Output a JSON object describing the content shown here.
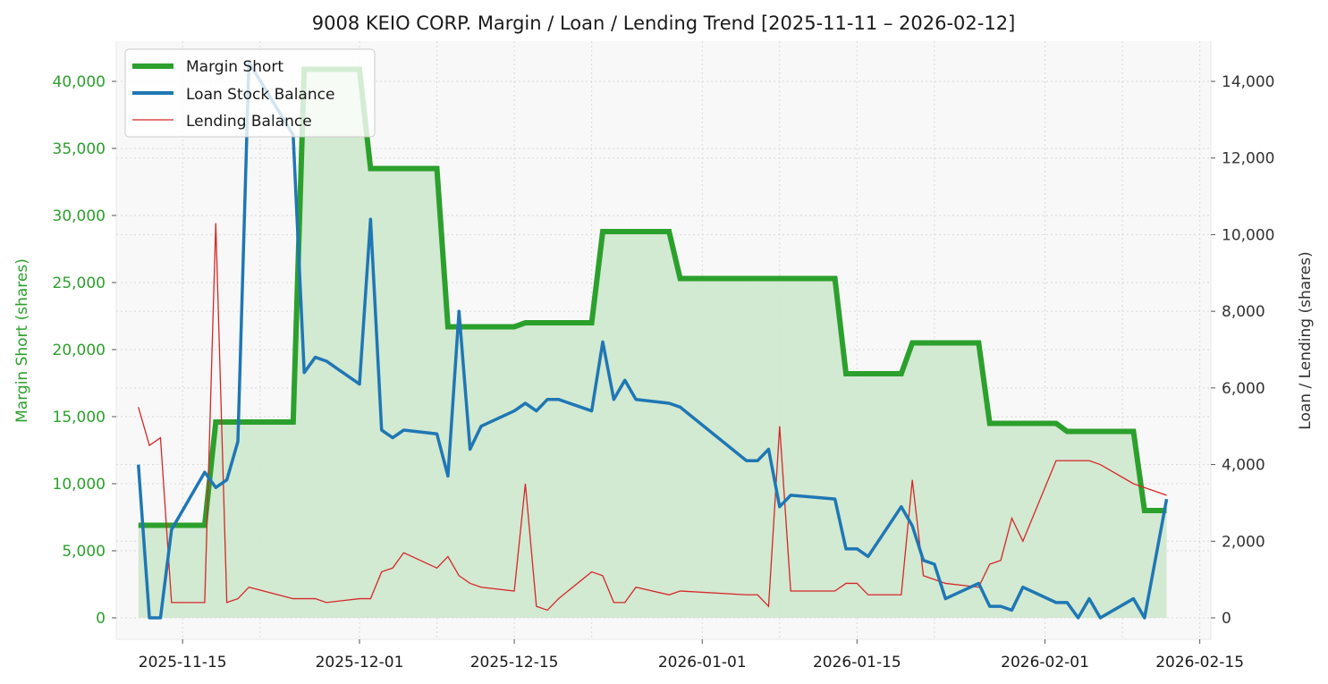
{
  "chart_data": {
    "type": "line",
    "title": "9008 KEIO CORP. Margin / Loan / Lending Trend [2025-11-11 – 2026-02-12]",
    "ylabel_left": "Margin Short (shares)",
    "ylabel_right": "Loan / Lending (shares)",
    "xlim": [
      "2025-11-09",
      "2026-02-16"
    ],
    "ylim_left": [
      -1600,
      43000
    ],
    "ylim_right": [
      -560,
      15050
    ],
    "x_ticks": [
      "2025-11-15",
      "2025-12-01",
      "2025-12-15",
      "2026-01-01",
      "2026-01-15",
      "2026-02-01",
      "2026-02-15"
    ],
    "y_ticks_left": [
      0,
      5000,
      10000,
      15000,
      20000,
      25000,
      30000,
      35000,
      40000
    ],
    "y_tick_labels_left": [
      "0",
      "5,000",
      "10,000",
      "15,000",
      "20,000",
      "25,000",
      "30,000",
      "35,000",
      "40,000"
    ],
    "y_ticks_right": [
      0,
      2000,
      4000,
      6000,
      8000,
      10000,
      12000,
      14000
    ],
    "y_tick_labels_right": [
      "0",
      "2,000",
      "4,000",
      "6,000",
      "8,000",
      "10,000",
      "12,000",
      "14,000"
    ],
    "grid": true,
    "legend_position": "top-left",
    "colors": {
      "margin": "#2ca02c",
      "loan": "#1f77b4",
      "lending": "#d62728",
      "fill": "#d0e8d0",
      "panel": "#f8f8f8"
    },
    "series": [
      {
        "name": "Margin Short",
        "axis": "left",
        "style": "step-thick",
        "points": [
          [
            "2025-11-11",
            6900
          ],
          [
            "2025-11-14",
            6900
          ],
          [
            "2025-11-17",
            6900
          ],
          [
            "2025-11-18",
            14600
          ],
          [
            "2025-11-25",
            14600
          ],
          [
            "2025-11-26",
            40900
          ],
          [
            "2025-12-01",
            40900
          ],
          [
            "2025-12-02",
            33500
          ],
          [
            "2025-12-08",
            33500
          ],
          [
            "2025-12-09",
            21700
          ],
          [
            "2025-12-15",
            21700
          ],
          [
            "2025-12-16",
            22000
          ],
          [
            "2025-12-22",
            22000
          ],
          [
            "2025-12-23",
            28800
          ],
          [
            "2025-12-29",
            28800
          ],
          [
            "2025-12-30",
            25300
          ],
          [
            "2026-01-13",
            25300
          ],
          [
            "2026-01-14",
            18200
          ],
          [
            "2026-01-19",
            18200
          ],
          [
            "2026-01-20",
            20500
          ],
          [
            "2026-01-26",
            20500
          ],
          [
            "2026-01-27",
            14500
          ],
          [
            "2026-02-02",
            14500
          ],
          [
            "2026-02-03",
            13900
          ],
          [
            "2026-02-09",
            13900
          ],
          [
            "2026-02-10",
            8000
          ],
          [
            "2026-02-12",
            8000
          ]
        ]
      },
      {
        "name": "Loan Stock Balance",
        "axis": "right",
        "style": "line-medium",
        "points": [
          [
            "2025-11-11",
            4000
          ],
          [
            "2025-11-12",
            0
          ],
          [
            "2025-11-13",
            0
          ],
          [
            "2025-11-14",
            2300
          ],
          [
            "2025-11-17",
            3800
          ],
          [
            "2025-11-18",
            3400
          ],
          [
            "2025-11-19",
            3600
          ],
          [
            "2025-11-20",
            4600
          ],
          [
            "2025-11-21",
            14500
          ],
          [
            "2025-11-25",
            12600
          ],
          [
            "2025-11-26",
            6400
          ],
          [
            "2025-11-27",
            6800
          ],
          [
            "2025-11-28",
            6700
          ],
          [
            "2025-12-01",
            6100
          ],
          [
            "2025-12-02",
            10400
          ],
          [
            "2025-12-03",
            4900
          ],
          [
            "2025-12-04",
            4700
          ],
          [
            "2025-12-05",
            4900
          ],
          [
            "2025-12-08",
            4800
          ],
          [
            "2025-12-09",
            3700
          ],
          [
            "2025-12-10",
            8000
          ],
          [
            "2025-12-11",
            4400
          ],
          [
            "2025-12-12",
            5000
          ],
          [
            "2025-12-15",
            5400
          ],
          [
            "2025-12-16",
            5600
          ],
          [
            "2025-12-17",
            5400
          ],
          [
            "2025-12-18",
            5700
          ],
          [
            "2025-12-19",
            5700
          ],
          [
            "2025-12-22",
            5400
          ],
          [
            "2025-12-23",
            7200
          ],
          [
            "2025-12-24",
            5700
          ],
          [
            "2025-12-25",
            6200
          ],
          [
            "2025-12-26",
            5700
          ],
          [
            "2025-12-29",
            5600
          ],
          [
            "2025-12-30",
            5500
          ],
          [
            "2026-01-05",
            4100
          ],
          [
            "2026-01-06",
            4100
          ],
          [
            "2026-01-07",
            4400
          ],
          [
            "2026-01-08",
            2900
          ],
          [
            "2026-01-09",
            3200
          ],
          [
            "2026-01-13",
            3100
          ],
          [
            "2026-01-14",
            1800
          ],
          [
            "2026-01-15",
            1800
          ],
          [
            "2026-01-16",
            1600
          ],
          [
            "2026-01-19",
            2900
          ],
          [
            "2026-01-20",
            2400
          ],
          [
            "2026-01-21",
            1500
          ],
          [
            "2026-01-22",
            1400
          ],
          [
            "2026-01-23",
            500
          ],
          [
            "2026-01-26",
            900
          ],
          [
            "2026-01-27",
            300
          ],
          [
            "2026-01-28",
            300
          ],
          [
            "2026-01-29",
            200
          ],
          [
            "2026-01-30",
            800
          ],
          [
            "2026-02-02",
            400
          ],
          [
            "2026-02-03",
            400
          ],
          [
            "2026-02-04",
            0
          ],
          [
            "2026-02-05",
            500
          ],
          [
            "2026-02-06",
            0
          ],
          [
            "2026-02-09",
            500
          ],
          [
            "2026-02-10",
            0
          ],
          [
            "2026-02-12",
            3100
          ]
        ]
      },
      {
        "name": "Lending Balance",
        "axis": "right",
        "style": "line-thin",
        "points": [
          [
            "2025-11-11",
            5500
          ],
          [
            "2025-11-12",
            4500
          ],
          [
            "2025-11-13",
            4700
          ],
          [
            "2025-11-14",
            400
          ],
          [
            "2025-11-17",
            400
          ],
          [
            "2025-11-18",
            10300
          ],
          [
            "2025-11-19",
            400
          ],
          [
            "2025-11-20",
            500
          ],
          [
            "2025-11-21",
            800
          ],
          [
            "2025-11-25",
            500
          ],
          [
            "2025-11-27",
            500
          ],
          [
            "2025-11-28",
            400
          ],
          [
            "2025-12-01",
            500
          ],
          [
            "2025-12-02",
            500
          ],
          [
            "2025-12-03",
            1200
          ],
          [
            "2025-12-04",
            1300
          ],
          [
            "2025-12-05",
            1700
          ],
          [
            "2025-12-08",
            1300
          ],
          [
            "2025-12-09",
            1600
          ],
          [
            "2025-12-10",
            1100
          ],
          [
            "2025-12-11",
            900
          ],
          [
            "2025-12-12",
            800
          ],
          [
            "2025-12-15",
            700
          ],
          [
            "2025-12-16",
            3500
          ],
          [
            "2025-12-17",
            300
          ],
          [
            "2025-12-18",
            200
          ],
          [
            "2025-12-19",
            500
          ],
          [
            "2025-12-22",
            1200
          ],
          [
            "2025-12-23",
            1100
          ],
          [
            "2025-12-24",
            400
          ],
          [
            "2025-12-25",
            400
          ],
          [
            "2025-12-26",
            800
          ],
          [
            "2025-12-29",
            600
          ],
          [
            "2025-12-30",
            700
          ],
          [
            "2026-01-05",
            600
          ],
          [
            "2026-01-06",
            600
          ],
          [
            "2026-01-07",
            300
          ],
          [
            "2026-01-08",
            5000
          ],
          [
            "2026-01-09",
            700
          ],
          [
            "2026-01-13",
            700
          ],
          [
            "2026-01-14",
            900
          ],
          [
            "2026-01-15",
            900
          ],
          [
            "2026-01-16",
            600
          ],
          [
            "2026-01-19",
            600
          ],
          [
            "2026-01-20",
            3600
          ],
          [
            "2026-01-21",
            1100
          ],
          [
            "2026-01-22",
            1000
          ],
          [
            "2026-01-23",
            900
          ],
          [
            "2026-01-26",
            800
          ],
          [
            "2026-01-27",
            1400
          ],
          [
            "2026-01-28",
            1500
          ],
          [
            "2026-01-29",
            2600
          ],
          [
            "2026-01-30",
            2000
          ],
          [
            "2026-02-02",
            4100
          ],
          [
            "2026-02-05",
            4100
          ],
          [
            "2026-02-06",
            4000
          ],
          [
            "2026-02-09",
            3500
          ],
          [
            "2026-02-12",
            3200
          ]
        ]
      }
    ]
  }
}
